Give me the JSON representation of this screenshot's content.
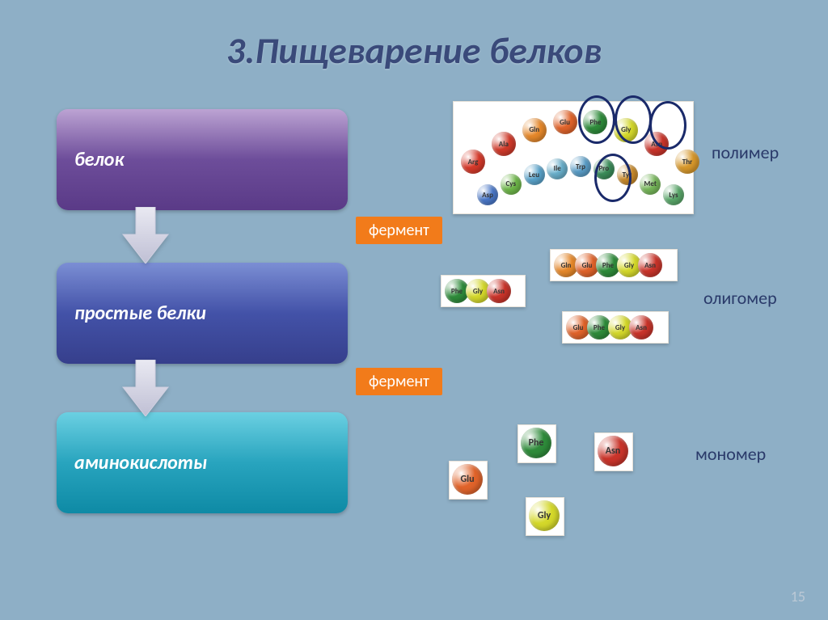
{
  "title": "3.Пищеварение белков",
  "panels": {
    "purple": "белок",
    "blue": "простые белки",
    "cyan": "аминокислоты"
  },
  "tags": {
    "top": "фермент",
    "bottom": "фермент"
  },
  "rightLabels": {
    "polymer": "полимер",
    "oligomer": "олигомер",
    "monomer": "мономер"
  },
  "slideNumber": "15",
  "colors": {
    "bg": "#8eafc6",
    "title": "#3a4a7a",
    "tagBg": "#f27b1a",
    "annotate": "#1a2a6a"
  },
  "aminoAcids": {
    "Phe": "#2e8b3a",
    "Gly": "#d4d82a",
    "Asn": "#c9342a",
    "Gln": "#e6882a",
    "Glu": "#e0632a",
    "Ala": "#d03a2a",
    "Arg": "#d6392a",
    "Asp": "#4a78c9",
    "Cys": "#6fb84a",
    "Leu": "#5aa4cc",
    "Ile": "#6ab0cc",
    "Trp": "#5a9ec8",
    "Pro": "#3b8d5a",
    "Tyr": "#c98a2a",
    "Met": "#77b85a",
    "Lys": "#5aa86a",
    "Thr": "#d8982a"
  },
  "polymerChain": [
    "Arg",
    "Ala",
    "Gln",
    "Glu",
    "Phe",
    "Gly",
    "Asn",
    "Thr"
  ],
  "polymerChain2": [
    "Asp",
    "Cys",
    "Leu",
    "Ile",
    "Trp",
    "Pro",
    "Tyr",
    "Met",
    "Lys"
  ],
  "oligomerCards": [
    [
      "Phe",
      "Gly",
      "Asn"
    ],
    [
      "Gln",
      "Glu",
      "Phe",
      "Gly",
      "Asn"
    ],
    [
      "Glu",
      "Phe",
      "Gly",
      "Asn"
    ]
  ],
  "monomers": [
    "Glu",
    "Phe",
    "Gly",
    "Asn"
  ]
}
